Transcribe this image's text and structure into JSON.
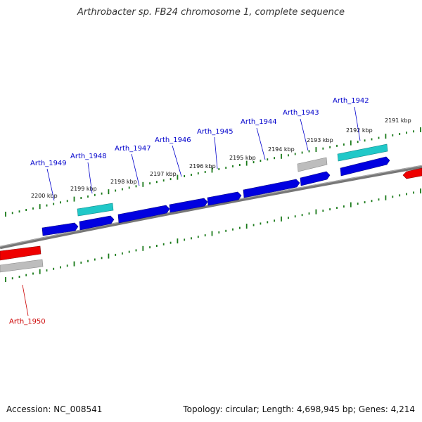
{
  "title": "Arthrobacter sp. FB24 chromosome 1, complete sequence",
  "footer": {
    "accession": "Accession: NC_008541",
    "summary": "Topology: circular; Length: 4,698,945 bp; Genes: 4,214"
  },
  "colors": {
    "backbone": "#808080",
    "ticks": "#1a7a1a",
    "forward_gene": "#0000e0",
    "reverse_gene": "#ee0000",
    "rna_gene": "#20c8c8",
    "other_feature": "#b4b4b4",
    "label_blue": "#0000cc",
    "label_red": "#cc0000"
  },
  "kbp_labels": [
    "2191 kbp",
    "2192 kbp",
    "2193 kbp",
    "2194 kbp",
    "2195 kbp",
    "2196 kbp",
    "2197 kbp",
    "2198 kbp",
    "2199 kbp",
    "2200 kbp"
  ],
  "gene_labels": [
    {
      "name": "Arth_1942",
      "color": "blue"
    },
    {
      "name": "Arth_1943",
      "color": "blue"
    },
    {
      "name": "Arth_1944",
      "color": "blue"
    },
    {
      "name": "Arth_1945",
      "color": "blue"
    },
    {
      "name": "Arth_1946",
      "color": "blue"
    },
    {
      "name": "Arth_1947",
      "color": "blue"
    },
    {
      "name": "Arth_1948",
      "color": "blue"
    },
    {
      "name": "Arth_1949",
      "color": "blue"
    },
    {
      "name": "Arth_1950",
      "color": "red"
    }
  ]
}
